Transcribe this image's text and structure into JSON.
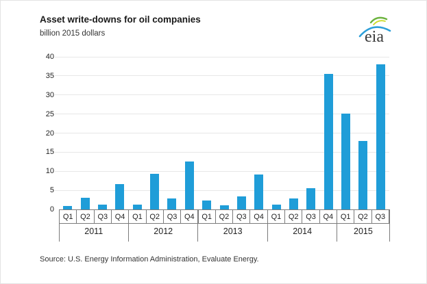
{
  "header": {
    "title": "Asset write-downs for oil companies",
    "subtitle": "billion 2015 dollars",
    "logo_text": "eia"
  },
  "source": "Source:  U.S. Energy Information Administration, Evaluate Energy.",
  "colors": {
    "bar": "#1f9dd8",
    "gridline": "#e7e7e7",
    "axis": "#7a7a7a",
    "text": "#333333",
    "logo_blue": "#2d9fd8",
    "logo_green": "#6cb33e",
    "logo_yellow": "#cbdb2a"
  },
  "chart_data": {
    "type": "bar",
    "title": "Asset write-downs for oil companies",
    "ylabel": "billion 2015 dollars",
    "xlabel": "",
    "ylim": [
      0,
      40
    ],
    "yticks": [
      0,
      5,
      10,
      15,
      20,
      25,
      30,
      35,
      40
    ],
    "grid": true,
    "legend": "none",
    "years": [
      {
        "year": "2011",
        "quarters": [
          "Q1",
          "Q2",
          "Q3",
          "Q4"
        ],
        "values": [
          0.9,
          3.0,
          1.3,
          6.6
        ]
      },
      {
        "year": "2012",
        "quarters": [
          "Q1",
          "Q2",
          "Q3",
          "Q4"
        ],
        "values": [
          1.3,
          9.4,
          2.8,
          12.6
        ]
      },
      {
        "year": "2013",
        "quarters": [
          "Q1",
          "Q2",
          "Q3",
          "Q4"
        ],
        "values": [
          2.3,
          1.1,
          3.4,
          9.1
        ]
      },
      {
        "year": "2014",
        "quarters": [
          "Q1",
          "Q2",
          "Q3",
          "Q4"
        ],
        "values": [
          1.2,
          2.8,
          5.5,
          35.5
        ]
      },
      {
        "year": "2015",
        "quarters": [
          "Q1",
          "Q2",
          "Q3"
        ],
        "values": [
          25.1,
          18.0,
          38.0
        ]
      }
    ]
  }
}
